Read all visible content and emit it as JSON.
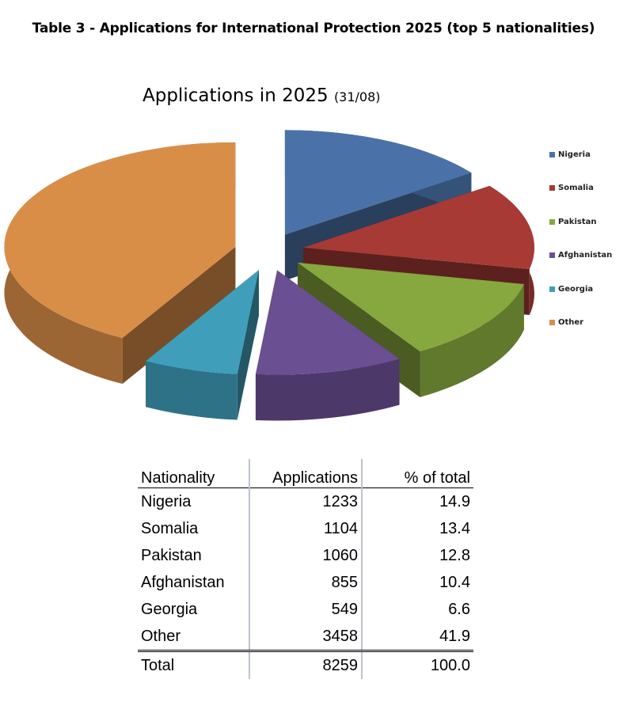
{
  "title": "Table 3 - Applications for International Protection 2025 (top 5 nationalities)",
  "chart_data": {
    "type": "pie",
    "title": "Applications in 2025",
    "subtitle": "(31/08)",
    "categories": [
      "Nigeria",
      "Somalia",
      "Pakistan",
      "Afghanistan",
      "Georgia",
      "Other"
    ],
    "values": [
      1233,
      1104,
      1060,
      855,
      549,
      3458
    ],
    "colors": [
      "#4a72a8",
      "#a83a36",
      "#86a83e",
      "#6a4f92",
      "#3f9fba",
      "#d98e48"
    ],
    "legend_position": "right",
    "exploded": true,
    "style": "3d"
  },
  "table": {
    "headers": [
      "Nationality",
      "Applications",
      "% of total"
    ],
    "rows": [
      [
        "Nigeria",
        "1233",
        "14.9"
      ],
      [
        "Somalia",
        "1104",
        "13.4"
      ],
      [
        "Pakistan",
        "1060",
        "12.8"
      ],
      [
        "Afghanistan",
        "855",
        "10.4"
      ],
      [
        "Georgia",
        "549",
        "6.6"
      ],
      [
        "Other",
        "3458",
        "41.9"
      ]
    ],
    "total": [
      "Total",
      "8259",
      "100.0"
    ]
  }
}
